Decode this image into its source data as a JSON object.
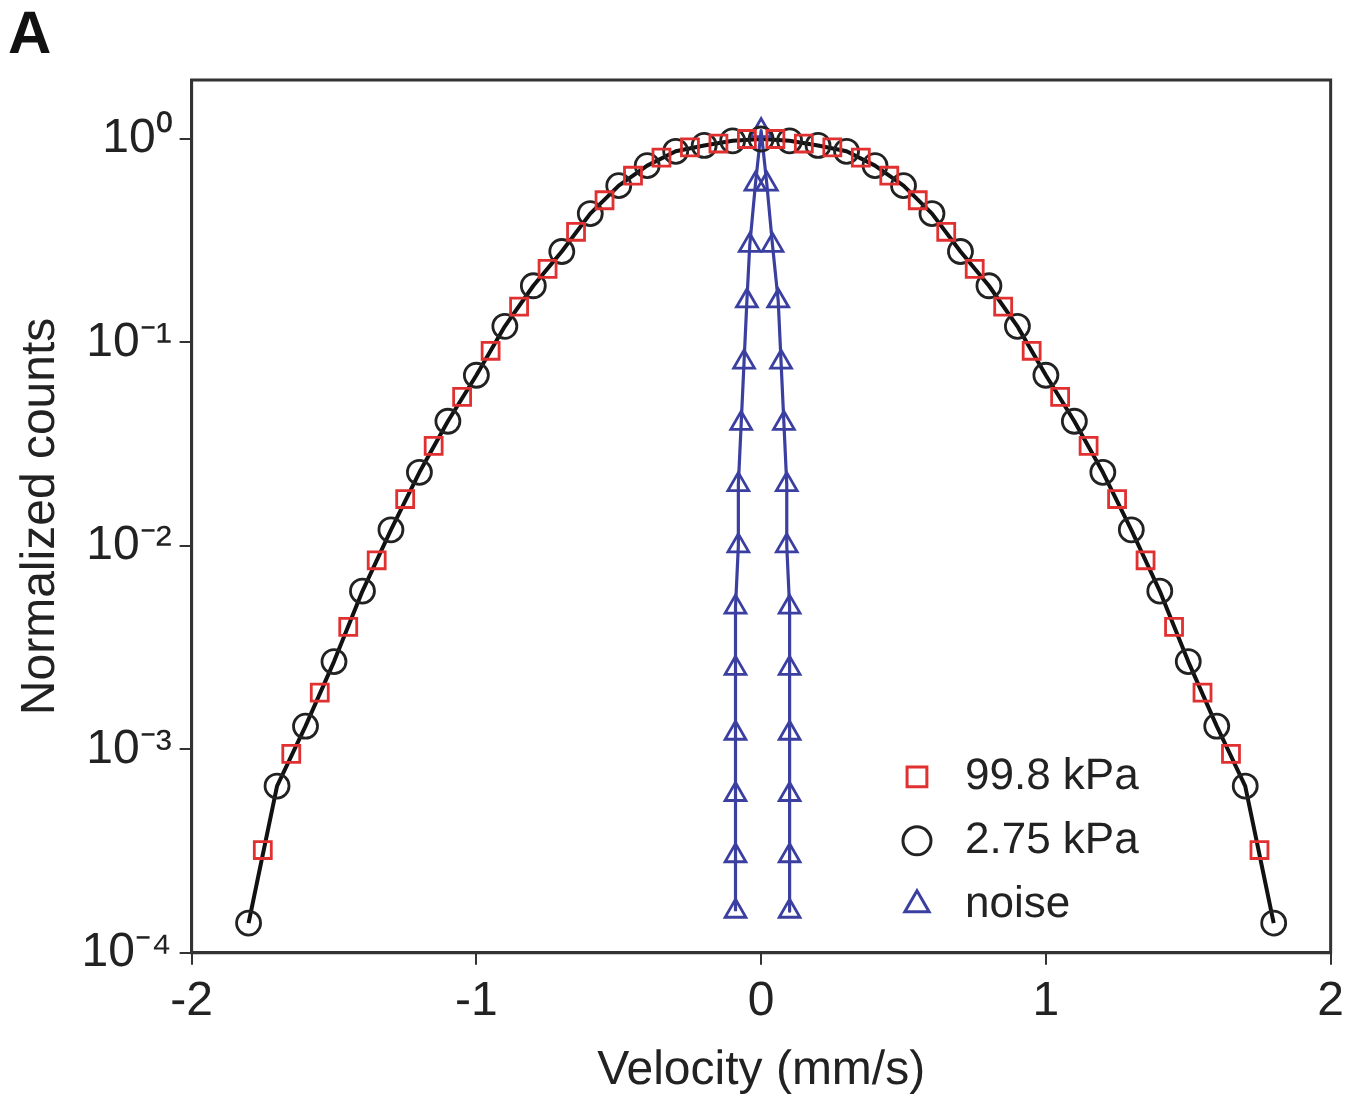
{
  "chart_data": {
    "type": "scatter",
    "title": "A",
    "xlabel": "Velocity (mm/s)",
    "ylabel": "Normalized counts",
    "log": "y",
    "grid": false,
    "legend": "bottom right",
    "xlim": [
      -2,
      2
    ],
    "xticks": [
      -2,
      -1,
      0,
      1,
      2
    ],
    "ylim": [
      0.0001,
      1.95
    ],
    "yticks": [
      {
        "value": 0.0001,
        "label": "10⁻⁴"
      },
      {
        "value": 0.001,
        "label": "10⁻³"
      },
      {
        "value": 0.01,
        "label": "10⁻²"
      },
      {
        "value": 0.1,
        "label": "10⁻¹"
      },
      {
        "value": 1,
        "label": "10⁰"
      }
    ],
    "series": [
      {
        "name": "99.8 kPa",
        "type": "scatter",
        "marker": "square",
        "color": "#e03030",
        "x": [
          -1.75,
          -1.65,
          -1.55,
          -1.45,
          -1.35,
          -1.25,
          -1.15,
          -1.05,
          -0.95,
          -0.85,
          -0.75,
          -0.65,
          -0.55,
          -0.45,
          -0.35,
          -0.25,
          -0.15,
          -0.05,
          0.05,
          0.15,
          0.25,
          0.35,
          0.45,
          0.55,
          0.65,
          0.75,
          0.85,
          0.95,
          1.05,
          1.15,
          1.25,
          1.35,
          1.45,
          1.55,
          1.65,
          1.75
        ],
        "values": [
          0.00032,
          0.00095,
          0.0019,
          0.004,
          0.0085,
          0.017,
          0.031,
          0.054,
          0.091,
          0.15,
          0.23,
          0.35,
          0.5,
          0.66,
          0.81,
          0.91,
          0.95,
          1.0,
          1.0,
          0.95,
          0.91,
          0.81,
          0.66,
          0.5,
          0.35,
          0.23,
          0.15,
          0.091,
          0.054,
          0.031,
          0.017,
          0.0085,
          0.004,
          0.0019,
          0.00095,
          0.00032
        ]
      },
      {
        "name": "2.75 kPa",
        "type": "scatter",
        "marker": "circle",
        "color": "#222222",
        "x": [
          -1.8,
          -1.7,
          -1.6,
          -1.5,
          -1.4,
          -1.3,
          -1.2,
          -1.1,
          -1.0,
          -0.9,
          -0.8,
          -0.7,
          -0.6,
          -0.5,
          -0.4,
          -0.3,
          -0.2,
          -0.1,
          0,
          0.1,
          0.2,
          0.3,
          0.4,
          0.5,
          0.6,
          0.7,
          0.8,
          0.9,
          1.0,
          1.1,
          1.2,
          1.3,
          1.4,
          1.5,
          1.6,
          1.7,
          1.8
        ],
        "values": [
          0.00014,
          0.00066,
          0.0013,
          0.0027,
          0.006,
          0.012,
          0.023,
          0.041,
          0.069,
          0.12,
          0.19,
          0.28,
          0.43,
          0.59,
          0.74,
          0.87,
          0.93,
          0.98,
          1.0,
          0.98,
          0.93,
          0.87,
          0.74,
          0.59,
          0.43,
          0.28,
          0.19,
          0.12,
          0.069,
          0.041,
          0.023,
          0.012,
          0.006,
          0.0027,
          0.0013,
          0.00066,
          0.00014
        ]
      },
      {
        "name": "noise",
        "type": "line",
        "marker": "triangle",
        "color": "#3b3fa0",
        "x": [
          -0.09,
          -0.09,
          -0.09,
          -0.09,
          -0.09,
          -0.09,
          -0.08,
          -0.08,
          -0.07,
          -0.06,
          -0.05,
          -0.04,
          -0.02,
          0,
          0.02,
          0.04,
          0.06,
          0.07,
          0.08,
          0.09,
          0.09,
          0.1,
          0.1,
          0.1,
          0.1,
          0.1,
          0.1
        ],
        "values": [
          0.00016,
          0.0003,
          0.0006,
          0.0012,
          0.0025,
          0.005,
          0.01,
          0.02,
          0.04,
          0.08,
          0.16,
          0.3,
          0.6,
          1.1,
          0.6,
          0.3,
          0.16,
          0.08,
          0.04,
          0.02,
          0.01,
          0.005,
          0.0025,
          0.0012,
          0.0006,
          0.0003,
          0.00016
        ]
      },
      {
        "type": "line",
        "marker": "none",
        "color": "#111111",
        "x": [
          -1.8,
          -1.7,
          -1.6,
          -1.5,
          -1.4,
          -1.3,
          -1.2,
          -1.1,
          -1.0,
          -0.9,
          -0.8,
          -0.7,
          -0.6,
          -0.5,
          -0.4,
          -0.3,
          -0.2,
          -0.1,
          0,
          0.1,
          0.2,
          0.3,
          0.4,
          0.5,
          0.6,
          0.7,
          0.8,
          0.9,
          1.0,
          1.1,
          1.2,
          1.3,
          1.4,
          1.5,
          1.6,
          1.7,
          1.8
        ],
        "values": [
          0.00014,
          0.00066,
          0.0013,
          0.0027,
          0.006,
          0.012,
          0.023,
          0.041,
          0.069,
          0.12,
          0.19,
          0.28,
          0.43,
          0.59,
          0.74,
          0.87,
          0.93,
          0.98,
          1.0,
          0.98,
          0.93,
          0.87,
          0.74,
          0.59,
          0.43,
          0.28,
          0.19,
          0.12,
          0.069,
          0.041,
          0.023,
          0.012,
          0.006,
          0.0027,
          0.0013,
          0.00066,
          0.00014
        ]
      }
    ]
  }
}
